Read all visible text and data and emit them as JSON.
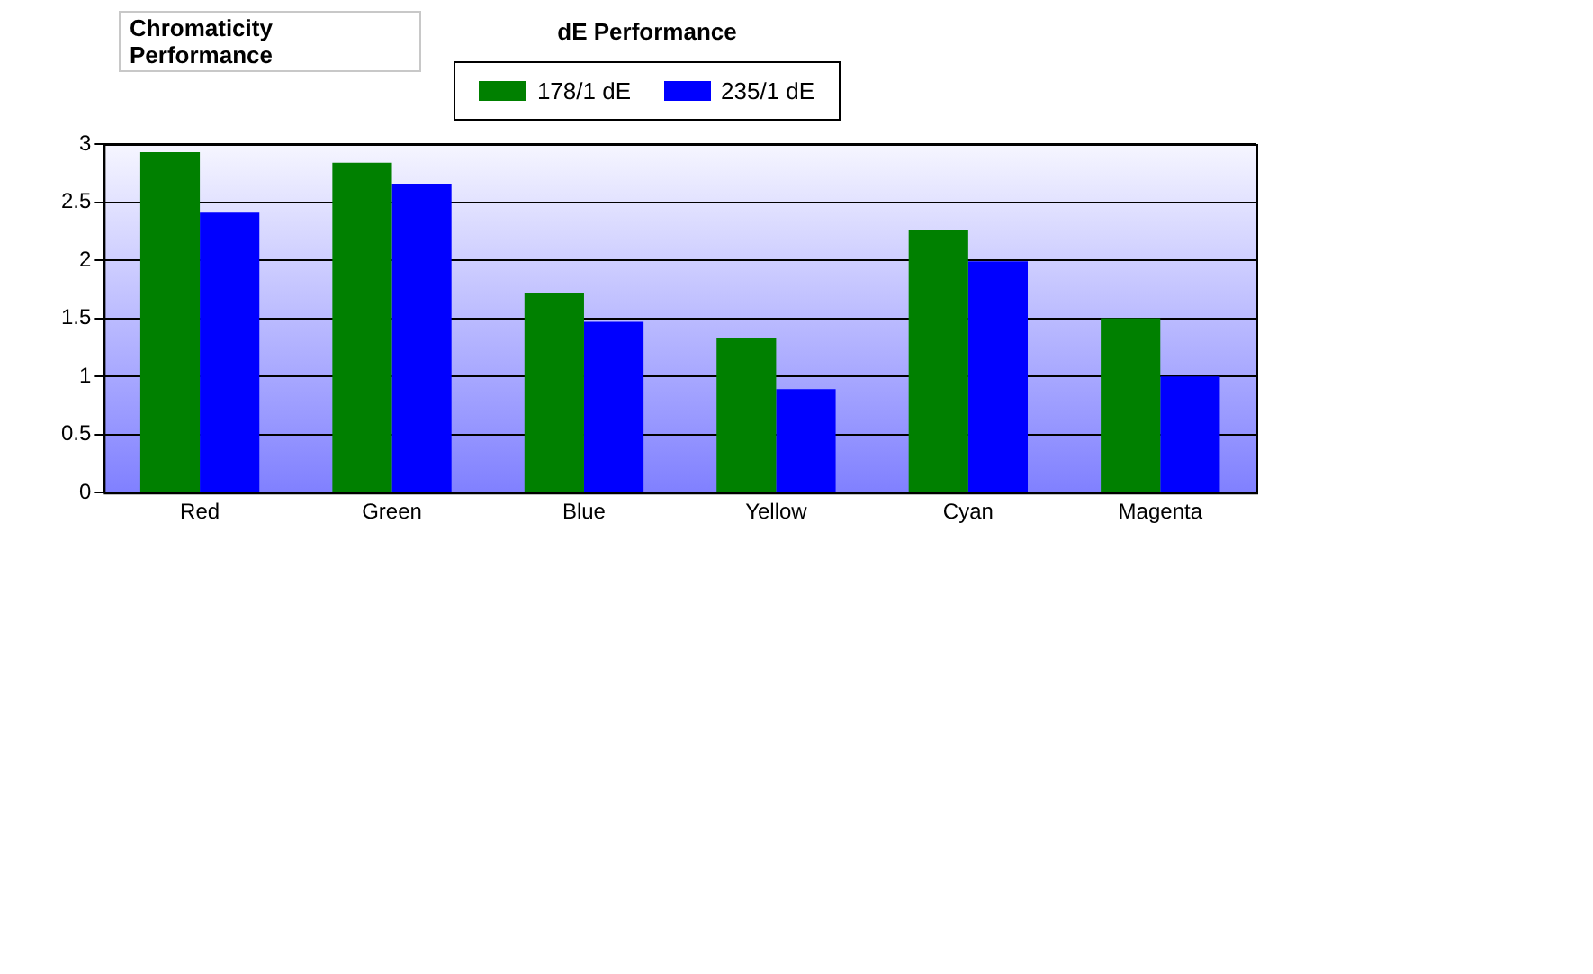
{
  "chart_data": {
    "type": "bar",
    "title": "Chromaticity Performance",
    "legend_title": "dE Performance",
    "categories": [
      "Red",
      "Green",
      "Blue",
      "Yellow",
      "Cyan",
      "Magenta"
    ],
    "series": [
      {
        "name": "178/1 dE",
        "color": "#008000",
        "values": [
          2.93,
          2.84,
          1.72,
          1.33,
          2.26,
          1.5
        ]
      },
      {
        "name": "235/1 dE",
        "color": "#0000ff",
        "values": [
          2.41,
          2.66,
          1.47,
          0.89,
          1.99,
          1.0
        ]
      }
    ],
    "ylim": [
      0,
      3
    ],
    "yticks": [
      0,
      0.5,
      1,
      1.5,
      2,
      2.5,
      3
    ],
    "grid": "y",
    "legend": "top"
  }
}
